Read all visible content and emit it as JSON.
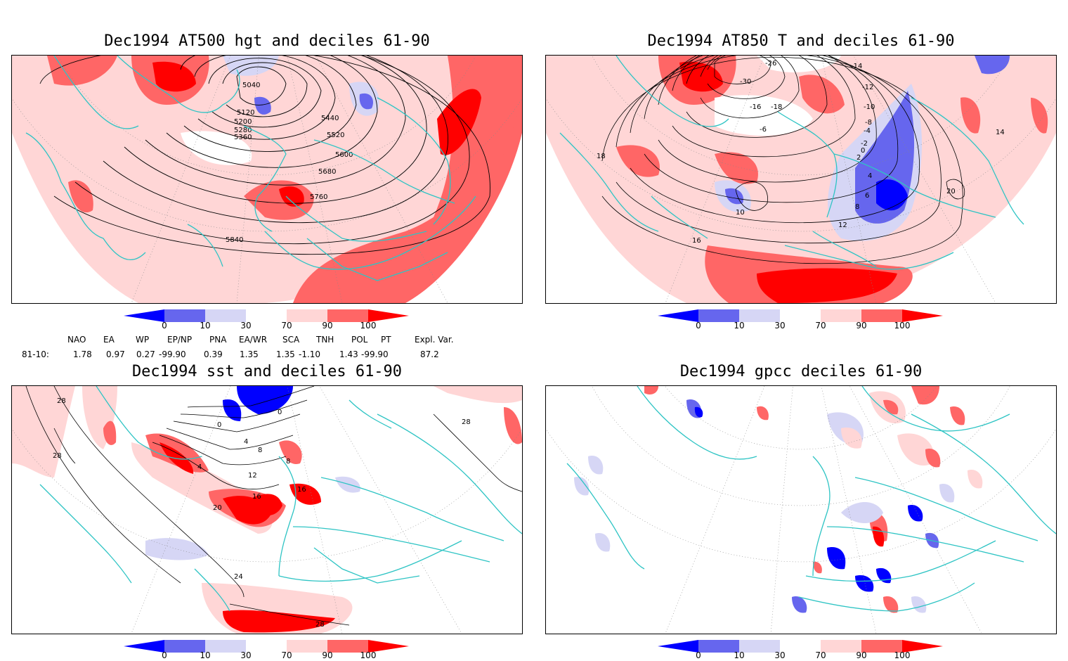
{
  "panels": {
    "p1": {
      "title": "Dec1994 AT500 hgt and deciles 61-90",
      "contour_labels": [
        "5040",
        "5120",
        "5200",
        "5280",
        "5360",
        "5440",
        "5520",
        "5600",
        "5680",
        "5760",
        "5840"
      ]
    },
    "p2": {
      "title": "Dec1994 AT850 T and deciles 61-90",
      "contour_labels": [
        "-26",
        "-30",
        "-18",
        "-14",
        "-12",
        "-16",
        "-10",
        "-8",
        "-6",
        "-4",
        "-2",
        "0",
        "2",
        "4",
        "6",
        "8",
        "10",
        "12",
        "14",
        "16",
        "18",
        "20"
      ]
    },
    "p3": {
      "title": "Dec1994 sst and deciles 61-90",
      "contour_labels": [
        "28",
        "0",
        "4",
        "8",
        "12",
        "16",
        "20",
        "24"
      ]
    },
    "p4": {
      "title": "Dec1994 gpcc deciles 61-90"
    }
  },
  "colorbar": {
    "ticks": [
      "0",
      "10",
      "30",
      "70",
      "90",
      "100"
    ],
    "colors": [
      "#0000ff",
      "#6666ee",
      "#d6d6f5",
      "#ffffff",
      "#ffd6d6",
      "#ff6666",
      "#ff0000"
    ]
  },
  "indices": {
    "headers": [
      "NAO",
      "EA",
      "WP",
      "EP/NP",
      "PNA",
      "EA/WR",
      "SCA",
      "TNH",
      "POL",
      "PT",
      "Expl. Var."
    ],
    "row_label": "81-10:",
    "values": [
      "1.78",
      "0.97",
      "0.27",
      "-99.90",
      "0.39",
      "1.35",
      "1.35",
      "-1.10",
      "1.43",
      "-99.90",
      "87.2"
    ]
  },
  "colors": {
    "coast": "#2ec4c4",
    "red": "#ff0000",
    "red_mid": "#ff6666",
    "red_light": "#ffd6d6",
    "blue": "#0000ff",
    "blue_mid": "#6666ee",
    "blue_light": "#d6d6f5"
  }
}
